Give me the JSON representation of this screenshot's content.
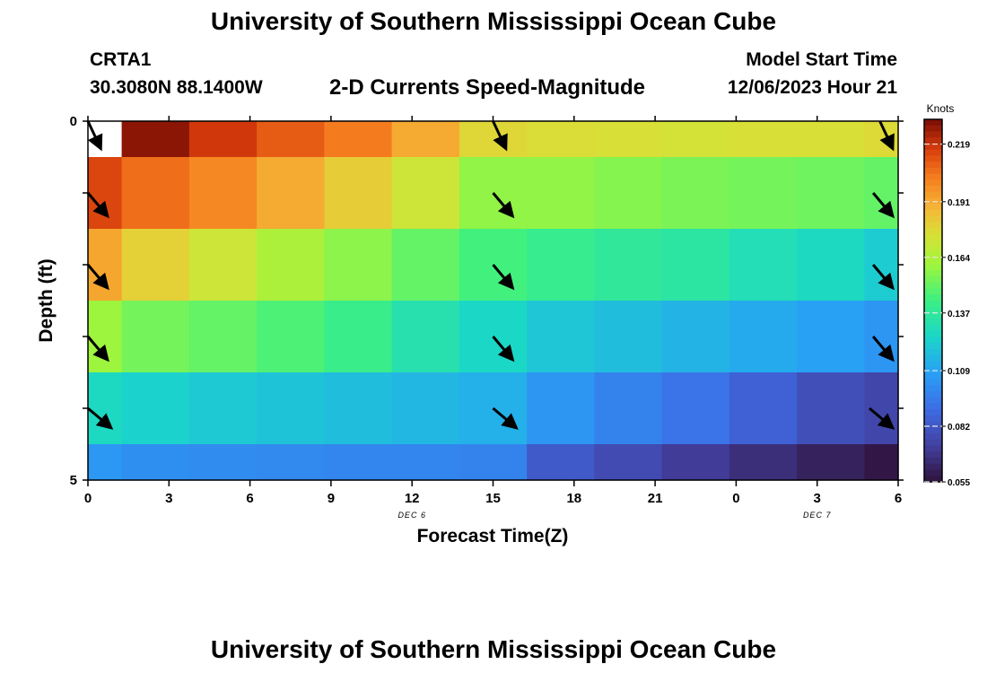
{
  "page": {
    "title_top": "University of Southern Mississippi Ocean Cube",
    "title_bottom": "University of Southern Mississippi Ocean Cube",
    "station": "CRTA1",
    "location": "30.3080N  88.1400W",
    "chart_title": "2-D Currents Speed-Magnitude",
    "model_start_label": "Model Start Time",
    "model_start_value": "12/06/2023 Hour 21"
  },
  "chart_data": {
    "type": "heatmap",
    "title": "2-D Currents Speed-Magnitude",
    "xlabel": "Forecast Time(Z)",
    "ylabel": "Depth (ft)",
    "x_tick_labels": [
      "0",
      "3",
      "6",
      "9",
      "12",
      "15",
      "18",
      "21",
      "0",
      "3",
      "6"
    ],
    "x_date_labels": [
      {
        "label": "DEC 6",
        "at_hour": 12
      },
      {
        "label": "DEC 7",
        "at_hour": 27
      }
    ],
    "x_range_hours": [
      0,
      30
    ],
    "y_range_ft": [
      0,
      5
    ],
    "y_tick_labels": [
      "0",
      "",
      "",
      "",
      "",
      "5"
    ],
    "colorbar": {
      "label": "Knots",
      "ticks": [
        "0.219",
        "0.191",
        "0.164",
        "0.137",
        "0.109",
        "0.082",
        "0.055"
      ],
      "range": [
        0.055,
        0.231
      ]
    },
    "col_hours": [
      0,
      2.5,
      5,
      7.5,
      10,
      12.5,
      15,
      17.5,
      20,
      22.5,
      25,
      27.5,
      30
    ],
    "row_depths_ft": [
      0,
      1,
      2,
      3,
      4,
      5
    ],
    "values": [
      [
        null,
        0.228,
        0.218,
        0.21,
        0.203,
        0.191,
        0.178,
        0.176,
        0.175,
        0.174,
        0.175,
        0.175,
        0.177
      ],
      [
        0.215,
        0.206,
        0.2,
        0.191,
        0.181,
        0.172,
        0.158,
        0.158,
        0.156,
        0.154,
        0.153,
        0.152,
        0.15
      ],
      [
        0.192,
        0.18,
        0.172,
        0.164,
        0.157,
        0.15,
        0.144,
        0.14,
        0.137,
        0.135,
        0.13,
        0.127,
        0.122
      ],
      [
        0.16,
        0.153,
        0.15,
        0.146,
        0.141,
        0.132,
        0.126,
        0.12,
        0.117,
        0.114,
        0.111,
        0.108,
        0.104
      ],
      [
        0.127,
        0.124,
        0.121,
        0.119,
        0.117,
        0.115,
        0.113,
        0.104,
        0.098,
        0.093,
        0.086,
        0.079,
        0.075
      ],
      [
        0.105,
        0.102,
        0.101,
        0.1,
        0.099,
        0.099,
        0.098,
        0.083,
        0.077,
        0.071,
        0.066,
        0.061,
        0.057
      ]
    ],
    "vector_hours": [
      0,
      15,
      30
    ],
    "vector_rows": [
      0,
      1,
      2,
      3,
      4
    ],
    "vector_directions_deg": [
      155,
      140,
      140,
      140,
      130
    ]
  }
}
